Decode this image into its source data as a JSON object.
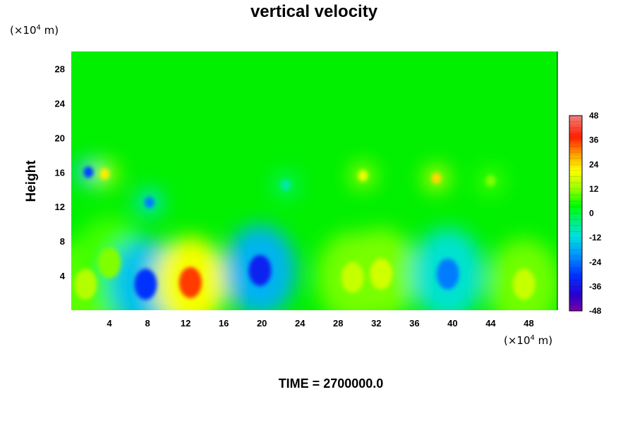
{
  "chart_data": {
    "type": "heatmap",
    "title": "vertical velocity",
    "xlabel": "",
    "ylabel": "Height",
    "x_unit": {
      "prefix": "(×10",
      "exp": "4",
      "suffix": " m)"
    },
    "y_unit": {
      "prefix": "(×10",
      "exp": "4",
      "suffix": " m)"
    },
    "xlim": [
      0,
      51
    ],
    "ylim": [
      0,
      30
    ],
    "x_ticks": [
      4,
      8,
      12,
      16,
      20,
      24,
      28,
      32,
      36,
      40,
      44,
      48
    ],
    "y_ticks": [
      4,
      8,
      12,
      16,
      20,
      24,
      28
    ],
    "colorbar": {
      "ticks": [
        48,
        36,
        24,
        12,
        0,
        -12,
        -24,
        -36,
        -48
      ],
      "range": [
        -48,
        48
      ],
      "levels": 32
    },
    "features": [
      {
        "x": 1.5,
        "y": 3.0,
        "value": 12
      },
      {
        "x": 4.0,
        "y": 5.5,
        "value": 8
      },
      {
        "x": 7.8,
        "y": 3.0,
        "value": -30
      },
      {
        "x": 12.5,
        "y": 3.2,
        "value": 38
      },
      {
        "x": 19.8,
        "y": 4.6,
        "value": -33
      },
      {
        "x": 29.5,
        "y": 3.8,
        "value": 14
      },
      {
        "x": 32.5,
        "y": 4.2,
        "value": 15
      },
      {
        "x": 39.5,
        "y": 4.2,
        "value": -22
      },
      {
        "x": 47.5,
        "y": 3.0,
        "value": 14
      },
      {
        "x": 1.8,
        "y": 16.0,
        "value": -28
      },
      {
        "x": 3.5,
        "y": 15.8,
        "value": 22
      },
      {
        "x": 8.2,
        "y": 12.5,
        "value": -22
      },
      {
        "x": 30.6,
        "y": 15.6,
        "value": 18
      },
      {
        "x": 38.3,
        "y": 15.3,
        "value": 24
      },
      {
        "x": 22.5,
        "y": 14.5,
        "value": -8
      },
      {
        "x": 44.0,
        "y": 15.0,
        "value": 8
      }
    ]
  },
  "footer": {
    "time_label": "TIME = 2700000.0"
  }
}
